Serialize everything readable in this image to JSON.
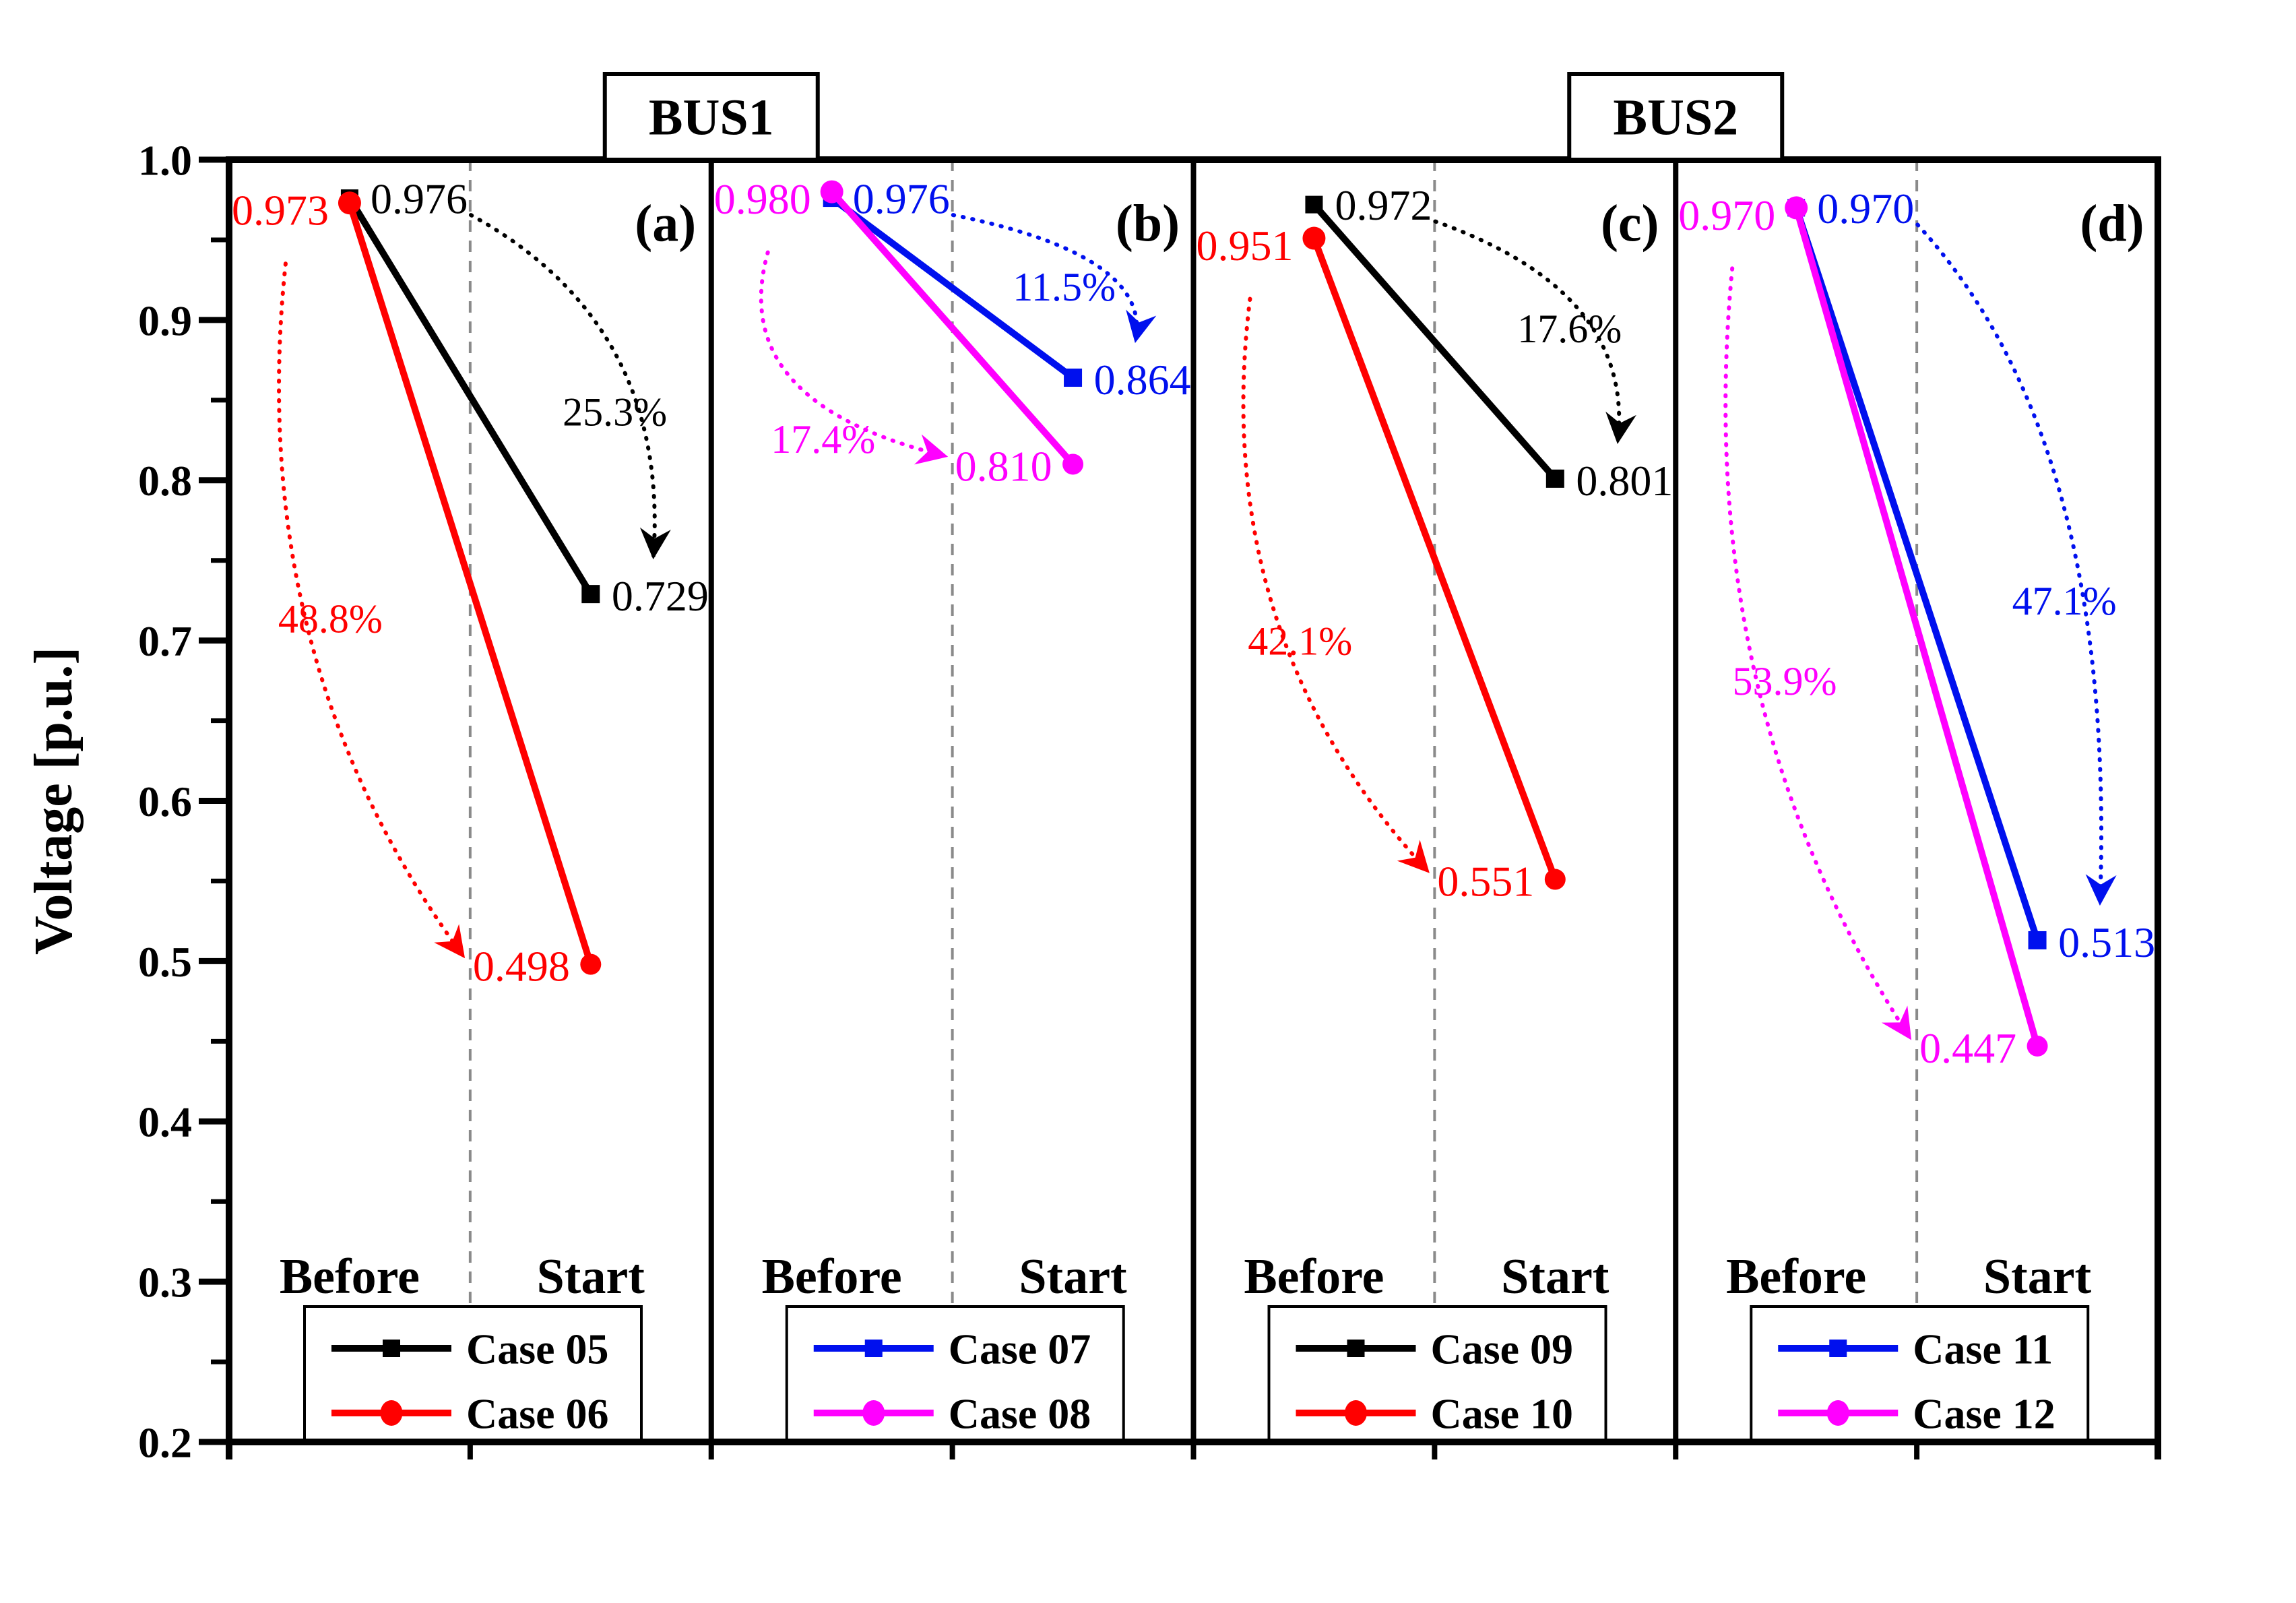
{
  "figure": {
    "background": "#ffffff"
  },
  "colors": {
    "black": "#000000",
    "red": "#ff0000",
    "blue": "#0010ee",
    "magenta": "#ff00ff",
    "grid_gray": "#8a8a8a",
    "frame": "#000000"
  },
  "y_axis": {
    "title": "Voltage [p.u.]",
    "min": 0.2,
    "max": 1.0,
    "major_step": 0.1,
    "minor_step": 0.05,
    "tick_labels": [
      "1.0",
      "0.9",
      "0.8",
      "0.7",
      "0.6",
      "0.5",
      "0.4",
      "0.3",
      "0.2"
    ]
  },
  "x_axis": {
    "categories": [
      "Before",
      "Start"
    ]
  },
  "bus_groups": [
    {
      "label": "BUS1"
    },
    {
      "label": "BUS2"
    }
  ],
  "chart_data": {
    "type": "line",
    "title": "",
    "ylabel": "Voltage [p.u.]",
    "ylim": [
      0.2,
      1.0
    ],
    "x_categories": [
      "Before",
      "Start"
    ],
    "bus_titles": [
      "BUS1",
      "BUS2"
    ],
    "grid": "off",
    "legend_position": "bottom-inside-each-panel",
    "panels": [
      {
        "letter": "(a)",
        "bus": "BUS1",
        "series": [
          {
            "name": "Case 05",
            "color_key": "black",
            "marker": "square",
            "label_side": "right",
            "before": 0.976,
            "start": 0.729,
            "before_label": "0.976",
            "start_label": "0.729",
            "drop_pct_label": "25.3%",
            "pct_pos": {
              "x_frac": 0.8,
              "v": 0.843
            }
          },
          {
            "name": "Case 06",
            "color_key": "red",
            "marker": "circle",
            "label_side": "left",
            "before": 0.973,
            "start": 0.498,
            "before_label": "0.973",
            "start_label": "0.498",
            "drop_pct_label": "48.8%",
            "pct_pos": {
              "x_frac": 0.21,
              "v": 0.714
            }
          }
        ]
      },
      {
        "letter": "(b)",
        "bus": "BUS1",
        "series": [
          {
            "name": "Case 07",
            "color_key": "blue",
            "marker": "square",
            "label_side": "right",
            "before": 0.976,
            "start": 0.864,
            "before_label": "0.976",
            "start_label": "0.864",
            "drop_pct_label": "11.5%",
            "pct_pos": {
              "x_frac": 0.732,
              "v": 0.921
            }
          },
          {
            "name": "Case 08",
            "color_key": "magenta",
            "marker": "circle",
            "label_side": "left",
            "before": 0.98,
            "start": 0.81,
            "before_label": "0.980",
            "start_label": "0.810",
            "drop_pct_label": "17.4%",
            "pct_pos": {
              "x_frac": 0.232,
              "v": 0.826
            }
          }
        ]
      },
      {
        "letter": "(c)",
        "bus": "BUS2",
        "series": [
          {
            "name": "Case 09",
            "color_key": "black",
            "marker": "square",
            "label_side": "right",
            "before": 0.972,
            "start": 0.801,
            "before_label": "0.972",
            "start_label": "0.801",
            "drop_pct_label": "17.6%",
            "pct_pos": {
              "x_frac": 0.78,
              "v": 0.895
            }
          },
          {
            "name": "Case 10",
            "color_key": "red",
            "marker": "circle",
            "label_side": "left",
            "before": 0.951,
            "start": 0.551,
            "before_label": "0.951",
            "start_label": "0.551",
            "drop_pct_label": "42.1%",
            "pct_pos": {
              "x_frac": 0.221,
              "v": 0.7
            }
          }
        ]
      },
      {
        "letter": "(d)",
        "bus": "BUS2",
        "series": [
          {
            "name": "Case 11",
            "color_key": "blue",
            "marker": "square",
            "label_side": "right",
            "before": 0.97,
            "start": 0.513,
            "before_label": "0.970",
            "start_label": "0.513",
            "drop_pct_label": "47.1%",
            "pct_pos": {
              "x_frac": 0.806,
              "v": 0.725
            }
          },
          {
            "name": "Case 12",
            "color_key": "magenta",
            "marker": "circle",
            "label_side": "left",
            "before": 0.97,
            "start": 0.447,
            "before_label": "0.970",
            "start_label": "0.447",
            "drop_pct_label": "53.9%",
            "pct_pos": {
              "x_frac": 0.226,
              "v": 0.675
            }
          }
        ]
      }
    ]
  }
}
